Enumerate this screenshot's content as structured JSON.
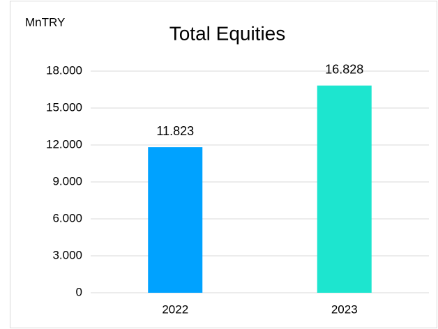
{
  "chart_data": {
    "type": "bar",
    "title": "Total Equities",
    "y_label": "MnTRY",
    "categories": [
      "2022",
      "2023"
    ],
    "values": [
      11823,
      16828
    ],
    "value_labels": [
      "11.823",
      "16.828"
    ],
    "colors": [
      "#00a2ff",
      "#1de5cf"
    ],
    "ylim": [
      0,
      18000
    ],
    "yticks": [
      0,
      {
        "value": 3000,
        "label": "3.000"
      },
      {
        "value": 6000,
        "label": "6.000"
      },
      {
        "value": 9000,
        "label": "9.000"
      },
      {
        "value": 12000,
        "label": "12.000"
      },
      {
        "value": 15000,
        "label": "15.000"
      },
      {
        "value": 18000,
        "label": "18.000"
      }
    ],
    "grid": true
  }
}
